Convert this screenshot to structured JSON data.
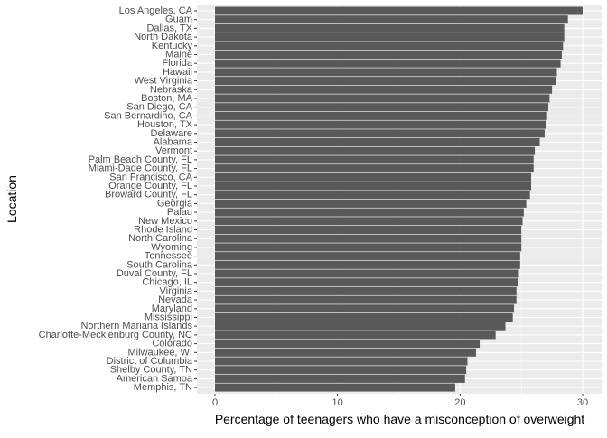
{
  "chart_data": {
    "type": "bar",
    "orientation": "horizontal",
    "xlabel": "Percentage of teenagers who have a misconception of overweight",
    "ylabel": "Location",
    "xlim": [
      0,
      30.0
    ],
    "xticks": [
      0,
      10,
      20,
      30
    ],
    "grid": true,
    "colors": {
      "panel": "#EBEBEB",
      "grid": "#FFFFFF",
      "bar": "#595959",
      "text": "#4D4D4D",
      "title": "#000000"
    },
    "categories": [
      "Los Angeles, CA",
      "Guam",
      "Dallas, TX",
      "North Dakota",
      "Kentucky",
      "Maine",
      "Florida",
      "Hawaii",
      "West Virginia",
      "Nebraska",
      "Boston, MA",
      "San Diego, CA",
      "San Bernardino, CA",
      "Houston, TX",
      "Delaware",
      "Alabama",
      "Vermont",
      "Palm Beach County, FL",
      "Miami-Dade County, FL",
      "San Francisco, CA",
      "Orange County, FL",
      "Broward County, FL",
      "Georgia",
      "Palau",
      "New Mexico",
      "Rhode Island",
      "North Carolina",
      "Wyoming",
      "Tennessee",
      "South Carolina",
      "Duval County, FL",
      "Chicago, IL",
      "Virginia",
      "Nevada",
      "Maryland",
      "Mississippi",
      "Northern Mariana Islands",
      "Charlotte-Mecklenburg County, NC",
      "Colorado",
      "Milwaukee, WI",
      "District of Columbia",
      "Shelby County, TN",
      "American Samoa",
      "Memphis, TN"
    ],
    "values": [
      30.0,
      28.8,
      28.5,
      28.5,
      28.4,
      28.3,
      28.2,
      27.9,
      27.8,
      27.5,
      27.3,
      27.2,
      27.1,
      27.0,
      26.9,
      26.5,
      26.1,
      26.0,
      26.0,
      25.8,
      25.8,
      25.7,
      25.4,
      25.2,
      25.1,
      25.0,
      25.0,
      25.0,
      24.9,
      24.9,
      24.8,
      24.7,
      24.6,
      24.6,
      24.4,
      24.3,
      23.7,
      22.9,
      21.6,
      21.3,
      20.6,
      20.5,
      20.4,
      19.6
    ]
  }
}
